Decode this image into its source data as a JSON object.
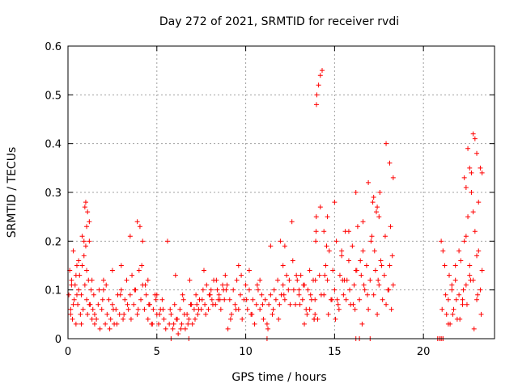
{
  "chart_data": {
    "type": "scatter",
    "title": "Day 272 of 2021, SRMTID for receiver rvdi",
    "xlabel": "GPS time / hours",
    "ylabel": "SRMTID / TECUs",
    "xlim": [
      0,
      24
    ],
    "ylim": [
      0,
      0.6
    ],
    "xticks": [
      0,
      5,
      10,
      15,
      20
    ],
    "xtick_labels": [
      "0",
      "5",
      "10",
      "15",
      "20"
    ],
    "yticks": [
      0,
      0.1,
      0.2,
      0.3,
      0.4,
      0.5,
      0.6
    ],
    "ytick_labels": [
      "0",
      "0.1",
      "0.2",
      "0.3",
      "0.4",
      "0.5",
      "0.6"
    ],
    "grid": true,
    "marker": "+",
    "color": "#ff0000",
    "series": [
      {
        "name": "SRMTID",
        "x": [
          0.05,
          0.1,
          0.15,
          0.2,
          0.25,
          0.3,
          0.35,
          0.4,
          0.45,
          0.5,
          0.55,
          0.6,
          0.65,
          0.7,
          0.75,
          0.8,
          0.85,
          0.9,
          0.95,
          1.0,
          1.05,
          1.1,
          1.15,
          1.2,
          1.25,
          1.3,
          1.35,
          1.4,
          1.45,
          1.5,
          0.15,
          0.3,
          0.45,
          0.6,
          0.75,
          0.9,
          1.05,
          1.2,
          1.35,
          1.5,
          0.2,
          0.5,
          0.8,
          1.0,
          1.1,
          1.2,
          0.95,
          1.05,
          1.6,
          1.7,
          1.8,
          1.9,
          2.0,
          2.1,
          2.2,
          2.3,
          2.4,
          2.5,
          2.6,
          2.7,
          2.8,
          2.9,
          3.0,
          3.1,
          3.2,
          3.3,
          3.4,
          3.5,
          3.6,
          3.7,
          3.8,
          3.9,
          4.0,
          4.1,
          4.2,
          4.3,
          4.4,
          4.5,
          4.6,
          4.7,
          4.8,
          4.9,
          5.0,
          5.1,
          5.2,
          5.3,
          5.4,
          5.5,
          1.75,
          1.95,
          2.15,
          2.35,
          2.55,
          2.75,
          2.95,
          3.15,
          3.35,
          3.55,
          3.75,
          3.95,
          4.15,
          4.35,
          4.55,
          4.75,
          4.95,
          5.15,
          5.35,
          2.0,
          2.5,
          3.0,
          3.5,
          3.9,
          4.05,
          4.2,
          4.5,
          5.0,
          5.7,
          5.8,
          5.9,
          6.0,
          6.1,
          6.2,
          6.3,
          6.4,
          6.5,
          6.6,
          6.7,
          6.8,
          6.9,
          7.0,
          7.1,
          7.2,
          7.3,
          7.4,
          7.5,
          7.6,
          7.7,
          7.8,
          7.9,
          8.0,
          8.1,
          8.2,
          8.3,
          8.4,
          8.5,
          8.6,
          8.7,
          8.8,
          8.9,
          9.0,
          5.75,
          5.95,
          6.15,
          6.35,
          6.55,
          6.75,
          6.95,
          7.15,
          7.35,
          7.55,
          7.75,
          7.95,
          8.15,
          8.35,
          8.55,
          8.75,
          8.95,
          6.05,
          6.45,
          6.85,
          7.25,
          7.65,
          8.05,
          8.45,
          8.85,
          5.6,
          9.1,
          9.2,
          9.3,
          9.4,
          9.5,
          9.6,
          9.7,
          9.8,
          9.9,
          10.0,
          10.1,
          10.2,
          10.3,
          10.4,
          10.5,
          10.6,
          10.7,
          10.8,
          10.9,
          11.0,
          11.1,
          11.2,
          11.3,
          11.4,
          11.5,
          11.6,
          11.7,
          11.8,
          11.9,
          12.0,
          12.1,
          12.2,
          12.3,
          12.4,
          12.5,
          9.15,
          9.45,
          9.75,
          10.05,
          10.35,
          10.65,
          10.95,
          11.25,
          11.55,
          11.85,
          12.15,
          12.45,
          9.6,
          10.2,
          10.8,
          11.4,
          11.95,
          12.1,
          12.2,
          12.6,
          12.7,
          12.8,
          12.9,
          13.0,
          13.1,
          13.2,
          13.3,
          13.4,
          13.5,
          13.6,
          13.7,
          13.8,
          13.9,
          12.65,
          12.85,
          13.05,
          13.25,
          13.45,
          13.65,
          13.85,
          13.0,
          13.3,
          13.6,
          13.85,
          13.9,
          13.92,
          13.94,
          13.96,
          13.97,
          13.98,
          14.0,
          14.1,
          14.2,
          14.3,
          14.4,
          14.5,
          14.6,
          14.7,
          14.8,
          14.9,
          15.0,
          15.1,
          15.2,
          15.3,
          15.4,
          15.5,
          15.6,
          15.7,
          15.8,
          15.9,
          16.0,
          16.1,
          16.2,
          16.3,
          16.4,
          16.5,
          16.6,
          16.7,
          16.8,
          16.9,
          17.0,
          17.1,
          17.2,
          17.3,
          17.4,
          17.5,
          17.6,
          17.7,
          17.8,
          17.9,
          18.0,
          18.1,
          18.2,
          18.3,
          14.05,
          14.25,
          14.45,
          14.65,
          14.85,
          15.05,
          15.25,
          15.45,
          15.65,
          15.85,
          16.05,
          16.25,
          16.45,
          16.65,
          16.85,
          17.05,
          17.25,
          17.45,
          17.65,
          17.85,
          18.05,
          18.25,
          14.15,
          14.55,
          15.15,
          15.55,
          16.15,
          16.55,
          17.15,
          17.55,
          18.15,
          14.2,
          14.4,
          14.6,
          15.0,
          15.4,
          15.8,
          16.2,
          16.6,
          16.9,
          17.2,
          17.35,
          17.4,
          17.5,
          17.9,
          18.1,
          18.3,
          21.0,
          21.1,
          21.2,
          21.3,
          21.4,
          21.5,
          21.6,
          21.7,
          21.8,
          21.9,
          22.0,
          22.1,
          22.2,
          22.3,
          22.4,
          22.5,
          22.6,
          22.7,
          22.8,
          22.9,
          23.0,
          23.1,
          23.2,
          23.3,
          21.05,
          21.25,
          21.45,
          21.65,
          21.85,
          22.05,
          22.25,
          22.45,
          22.65,
          22.85,
          23.05,
          23.25,
          21.4,
          21.6,
          21.8,
          22.0,
          22.2,
          22.4,
          22.6,
          22.8,
          23.0,
          23.2,
          22.3,
          22.5,
          22.7,
          22.9,
          23.1,
          22.4,
          22.6,
          22.8,
          23.0,
          23.3,
          20.8,
          20.9,
          21.0,
          21.1,
          5.8,
          6.8,
          11.2,
          16.2,
          16.4,
          17.0,
          20.9,
          21.0,
          21.1
        ],
        "y": [
          0.09,
          0.14,
          0.06,
          0.12,
          0.04,
          0.18,
          0.08,
          0.11,
          0.03,
          0.15,
          0.07,
          0.1,
          0.13,
          0.05,
          0.09,
          0.21,
          0.06,
          0.17,
          0.11,
          0.19,
          0.08,
          0.05,
          0.12,
          0.2,
          0.07,
          0.1,
          0.04,
          0.06,
          0.09,
          0.05,
          0.05,
          0.07,
          0.13,
          0.16,
          0.03,
          0.2,
          0.14,
          0.07,
          0.12,
          0.03,
          0.11,
          0.09,
          0.15,
          0.28,
          0.26,
          0.24,
          0.27,
          0.23,
          0.04,
          0.07,
          0.02,
          0.06,
          0.1,
          0.03,
          0.05,
          0.08,
          0.04,
          0.07,
          0.03,
          0.06,
          0.09,
          0.05,
          0.1,
          0.04,
          0.08,
          0.12,
          0.06,
          0.09,
          0.13,
          0.07,
          0.1,
          0.05,
          0.14,
          0.08,
          0.11,
          0.06,
          0.09,
          0.04,
          0.07,
          0.03,
          0.06,
          0.09,
          0.05,
          0.03,
          0.06,
          0.08,
          0.04,
          0.02,
          0.1,
          0.08,
          0.11,
          0.02,
          0.06,
          0.03,
          0.09,
          0.05,
          0.07,
          0.04,
          0.1,
          0.06,
          0.15,
          0.11,
          0.07,
          0.03,
          0.08,
          0.05,
          0.06,
          0.12,
          0.14,
          0.15,
          0.21,
          0.24,
          0.23,
          0.2,
          0.12,
          0.09,
          0.03,
          0.05,
          0.02,
          0.07,
          0.04,
          0.01,
          0.06,
          0.03,
          0.08,
          0.02,
          0.05,
          0.04,
          0.07,
          0.03,
          0.06,
          0.09,
          0.05,
          0.08,
          0.06,
          0.1,
          0.07,
          0.11,
          0.06,
          0.09,
          0.08,
          0.12,
          0.07,
          0.1,
          0.09,
          0.06,
          0.11,
          0.08,
          0.1,
          0.02,
          0.06,
          0.03,
          0.04,
          0.02,
          0.05,
          0.03,
          0.07,
          0.04,
          0.06,
          0.08,
          0.05,
          0.09,
          0.07,
          0.12,
          0.08,
          0.1,
          0.11,
          0.13,
          0.09,
          0.12,
          0.07,
          0.14,
          0.1,
          0.08,
          0.13,
          0.2,
          0.08,
          0.05,
          0.1,
          0.07,
          0.12,
          0.06,
          0.09,
          0.04,
          0.08,
          0.11,
          0.06,
          0.1,
          0.05,
          0.08,
          0.03,
          0.07,
          0.1,
          0.06,
          0.09,
          0.04,
          0.08,
          0.03,
          0.07,
          0.09,
          0.05,
          0.1,
          0.08,
          0.12,
          0.07,
          0.09,
          0.11,
          0.08,
          0.13,
          0.1,
          0.07,
          0.04,
          0.06,
          0.13,
          0.08,
          0.05,
          0.11,
          0.07,
          0.02,
          0.06,
          0.04,
          0.09,
          0.12,
          0.15,
          0.14,
          0.12,
          0.19,
          0.2,
          0.15,
          0.19,
          0.24,
          0.1,
          0.07,
          0.12,
          0.09,
          0.13,
          0.08,
          0.11,
          0.06,
          0.1,
          0.14,
          0.08,
          0.12,
          0.05,
          0.16,
          0.13,
          0.07,
          0.11,
          0.05,
          0.09,
          0.04,
          0.1,
          0.03,
          0.06,
          0.04,
          0.08,
          0.12,
          0.2,
          0.22,
          0.25,
          0.48,
          0.5,
          0.52,
          0.54,
          0.55,
          0.09,
          0.15,
          0.12,
          0.18,
          0.08,
          0.14,
          0.1,
          0.2,
          0.07,
          0.13,
          0.17,
          0.09,
          0.22,
          0.12,
          0.16,
          0.07,
          0.19,
          0.11,
          0.14,
          0.23,
          0.08,
          0.13,
          0.18,
          0.1,
          0.15,
          0.06,
          0.12,
          0.21,
          0.09,
          0.14,
          0.05,
          0.11,
          0.16,
          0.08,
          0.13,
          0.07,
          0.1,
          0.15,
          0.06,
          0.11,
          0.04,
          0.09,
          0.13,
          0.05,
          0.08,
          0.04,
          0.06,
          0.12,
          0.08,
          0.1,
          0.07,
          0.14,
          0.16,
          0.11,
          0.09,
          0.2,
          0.18,
          0.12,
          0.15,
          0.21,
          0.1,
          0.17,
          0.13,
          0.19,
          0.08,
          0.12,
          0.06,
          0.03,
          0.28,
          0.3,
          0.23,
          0.27,
          0.22,
          0.25,
          0.28,
          0.18,
          0.22,
          0.3,
          0.24,
          0.32,
          0.29,
          0.26,
          0.27,
          0.25,
          0.4,
          0.36,
          0.33,
          0.2,
          0.18,
          0.15,
          0.05,
          0.08,
          0.03,
          0.1,
          0.06,
          0.12,
          0.04,
          0.09,
          0.16,
          0.07,
          0.2,
          0.11,
          0.25,
          0.15,
          0.3,
          0.12,
          0.22,
          0.08,
          0.18,
          0.1,
          0.14,
          0.06,
          0.09,
          0.13,
          0.05,
          0.08,
          0.04,
          0.1,
          0.07,
          0.12,
          0.02,
          0.09,
          0.05,
          0.03,
          0.11,
          0.15,
          0.18,
          0.08,
          0.21,
          0.13,
          0.26,
          0.17,
          0.35,
          0.33,
          0.39,
          0.34,
          0.41,
          0.28,
          0.31,
          0.35,
          0.42,
          0.38,
          0.34,
          0.0,
          0.0,
          0.0,
          0.0,
          0.0,
          0.0,
          0.0,
          0.0,
          0.0,
          0.0,
          0.0,
          0.0,
          0.0
        ]
      }
    ]
  }
}
